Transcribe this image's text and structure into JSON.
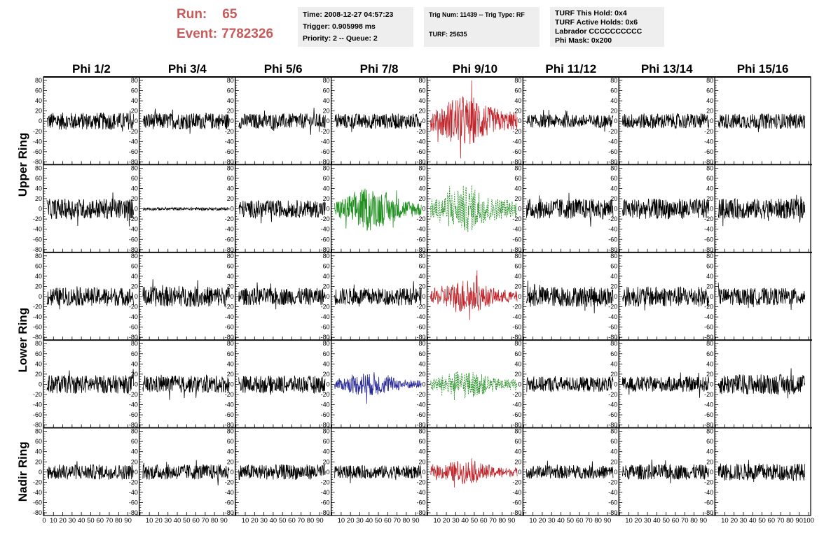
{
  "header": {
    "run_label": "Run:",
    "run_value": "65",
    "event_label": "Event:",
    "event_value": "7782326",
    "time_info": [
      "Time: 2008-12-27 04:57:23",
      "Trigger: 0.905998 ms",
      "Priority: 2 -- Queue: 2"
    ],
    "trig_info": [
      "Trig Num: 11439 -- Trig Type: RF",
      "TURF: 25635"
    ],
    "turf_info": [
      "TURF This Hold: 0x4",
      "TURF Active Holds: 0x6",
      "Labrador CCCCCCCCCC",
      "Phi Mask: 0x200"
    ]
  },
  "colors": {
    "run_text": "#c85a5a",
    "trace_default": "#000000",
    "trace_red": "#c0272d",
    "trace_green": "#1f8f1f",
    "trace_blue": "#2a2a9a",
    "info_bg": "#eeeeee"
  },
  "chart_data": {
    "type": "line",
    "title": "",
    "columns": [
      "Phi 1/2",
      "Phi 3/4",
      "Phi 5/6",
      "Phi 7/8",
      "Phi 9/10",
      "Phi 11/12",
      "Phi 13/14",
      "Phi 15/16"
    ],
    "ring_labels": [
      "Upper Ring",
      "Lower Ring",
      "Nadir Ring"
    ],
    "ylim": [
      -80,
      80
    ],
    "xlim": [
      0,
      100
    ],
    "y_ticks": [
      "-80",
      "-60",
      "-40",
      "-20",
      "0",
      "20",
      "40",
      "60",
      "80"
    ],
    "x_ticks": [
      "0",
      "10",
      "20",
      "30",
      "40",
      "50",
      "60",
      "70",
      "80",
      "90",
      "100"
    ],
    "x_ticks_inner": [
      "10",
      "20",
      "30",
      "40",
      "50",
      "60",
      "70",
      "80",
      "90"
    ],
    "rows": 5,
    "traces": [
      [
        {
          "color": "black",
          "amp": 17,
          "env": "flat"
        },
        {
          "color": "black",
          "amp": 16,
          "env": "flat"
        },
        {
          "color": "black",
          "amp": 15,
          "env": "flat"
        },
        {
          "color": "black",
          "amp": 15,
          "env": "flat"
        },
        {
          "color": "red",
          "amp": 55,
          "env": "burst"
        },
        {
          "color": "black",
          "amp": 13,
          "env": "flat"
        },
        {
          "color": "black",
          "amp": 15,
          "env": "flat"
        },
        {
          "color": "black",
          "amp": 15,
          "env": "flat"
        }
      ],
      [
        {
          "color": "black",
          "amp": 20,
          "env": "flat"
        },
        {
          "color": "black",
          "amp": 3,
          "env": "flat"
        },
        {
          "color": "black",
          "amp": 17,
          "env": "flat"
        },
        {
          "color": "green",
          "amp": 45,
          "env": "burst"
        },
        {
          "color": "green",
          "amp": 50,
          "env": "burst",
          "dashed": true
        },
        {
          "color": "black",
          "amp": 20,
          "env": "flat"
        },
        {
          "color": "black",
          "amp": 20,
          "env": "flat"
        },
        {
          "color": "black",
          "amp": 20,
          "env": "flat"
        }
      ],
      [
        {
          "color": "black",
          "amp": 18,
          "env": "flat"
        },
        {
          "color": "black",
          "amp": 20,
          "env": "flat"
        },
        {
          "color": "black",
          "amp": 17,
          "env": "flat"
        },
        {
          "color": "black",
          "amp": 17,
          "env": "flat"
        },
        {
          "color": "red",
          "amp": 35,
          "env": "burst"
        },
        {
          "color": "black",
          "amp": 20,
          "env": "flat"
        },
        {
          "color": "black",
          "amp": 20,
          "env": "flat"
        },
        {
          "color": "black",
          "amp": 17,
          "env": "flat"
        }
      ],
      [
        {
          "color": "black",
          "amp": 18,
          "env": "flat"
        },
        {
          "color": "black",
          "amp": 17,
          "env": "flat"
        },
        {
          "color": "black",
          "amp": 17,
          "env": "flat"
        },
        {
          "color": "blue",
          "amp": 25,
          "env": "burst"
        },
        {
          "color": "green",
          "amp": 30,
          "env": "burst",
          "dashed": true
        },
        {
          "color": "black",
          "amp": 15,
          "env": "flat"
        },
        {
          "color": "black",
          "amp": 15,
          "env": "flat"
        },
        {
          "color": "black",
          "amp": 20,
          "env": "flat"
        }
      ],
      [
        {
          "color": "black",
          "amp": 15,
          "env": "flat"
        },
        {
          "color": "black",
          "amp": 15,
          "env": "flat"
        },
        {
          "color": "black",
          "amp": 15,
          "env": "flat"
        },
        {
          "color": "black",
          "amp": 13,
          "env": "flat"
        },
        {
          "color": "red",
          "amp": 25,
          "env": "burst"
        },
        {
          "color": "black",
          "amp": 13,
          "env": "flat"
        },
        {
          "color": "black",
          "amp": 15,
          "env": "flat"
        },
        {
          "color": "black",
          "amp": 17,
          "env": "flat"
        }
      ]
    ]
  }
}
